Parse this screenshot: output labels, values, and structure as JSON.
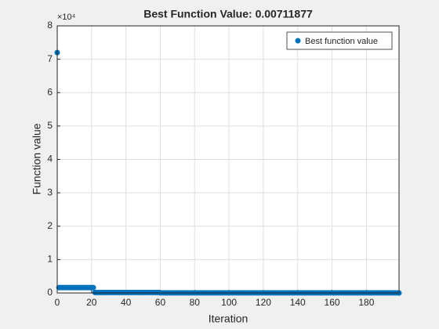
{
  "chart_data": {
    "type": "scatter",
    "title": "Best Function Value: 0.00711877",
    "x_label": "Iteration",
    "y_label": "Function value",
    "y_scale_label": "×10⁴",
    "xlim": [
      0,
      199
    ],
    "xticks": [
      0,
      20,
      40,
      60,
      80,
      100,
      120,
      140,
      160,
      180
    ],
    "ylim": [
      0,
      80000
    ],
    "yticks": [
      {
        "value": 0,
        "label": "0"
      },
      {
        "value": 10000,
        "label": "1"
      },
      {
        "value": 20000,
        "label": "2"
      },
      {
        "value": 30000,
        "label": "3"
      },
      {
        "value": 40000,
        "label": "4"
      },
      {
        "value": 50000,
        "label": "5"
      },
      {
        "value": 60000,
        "label": "6"
      },
      {
        "value": 70000,
        "label": "7"
      },
      {
        "value": 80000,
        "label": "8"
      }
    ],
    "grid": true,
    "legend": "top-right",
    "series": [
      {
        "name": "Best function value",
        "color": "#0072bd",
        "x": [
          0,
          1,
          2,
          3,
          4,
          5,
          6,
          7,
          8,
          9,
          10,
          11,
          12,
          13,
          14,
          15,
          16,
          17,
          18,
          19,
          20,
          21,
          22,
          23,
          24,
          25,
          26,
          27,
          28,
          29,
          30,
          31,
          32,
          33,
          34,
          35,
          36,
          37,
          38,
          39,
          40,
          41,
          42,
          43,
          44,
          45,
          46,
          47,
          48,
          49,
          50,
          51,
          52,
          53,
          54,
          55,
          56,
          57,
          58,
          59,
          60,
          61,
          62,
          63,
          64,
          65,
          66,
          67,
          68,
          69,
          70,
          71,
          72,
          73,
          74,
          75,
          76,
          77,
          78,
          79,
          80,
          81,
          82,
          83,
          84,
          85,
          86,
          87,
          88,
          89,
          90,
          91,
          92,
          93,
          94,
          95,
          96,
          97,
          98,
          99,
          100,
          101,
          102,
          103,
          104,
          105,
          106,
          107,
          108,
          109,
          110,
          111,
          112,
          113,
          114,
          115,
          116,
          117,
          118,
          119,
          120,
          121,
          122,
          123,
          124,
          125,
          126,
          127,
          128,
          129,
          130,
          131,
          132,
          133,
          134,
          135,
          136,
          137,
          138,
          139,
          140,
          141,
          142,
          143,
          144,
          145,
          146,
          147,
          148,
          149,
          150,
          151,
          152,
          153,
          154,
          155,
          156,
          157,
          158,
          159,
          160,
          161,
          162,
          163,
          164,
          165,
          166,
          167,
          168,
          169,
          170,
          171,
          172,
          173,
          174,
          175,
          176,
          177,
          178,
          179,
          180,
          181,
          182,
          183,
          184,
          185,
          186,
          187,
          188,
          189,
          190,
          191,
          192,
          193,
          194,
          195,
          196,
          197,
          198,
          199
        ],
        "values": [
          72000,
          1600,
          1600,
          1600,
          1600,
          1600,
          1600,
          1600,
          1600,
          1600,
          1600,
          1600,
          1600,
          1600,
          1600,
          1600,
          1600,
          1600,
          1600,
          1600,
          1600,
          1600,
          150,
          150,
          150,
          150,
          150,
          150,
          150,
          150,
          150,
          150,
          150,
          150,
          150,
          150,
          150,
          150,
          150,
          150,
          150,
          150,
          150,
          150,
          150,
          150,
          150,
          150,
          150,
          150,
          150,
          150,
          150,
          150,
          150,
          150,
          150,
          150,
          150,
          150,
          40,
          40,
          40,
          40,
          40,
          40,
          40,
          40,
          40,
          40,
          40,
          40,
          40,
          40,
          40,
          40,
          40,
          40,
          40,
          40,
          40,
          40,
          40,
          40,
          40,
          40,
          40,
          40,
          40,
          40,
          40,
          40,
          40,
          40,
          40,
          40,
          40,
          40,
          40,
          40,
          40,
          40,
          40,
          40,
          40,
          40,
          40,
          40,
          40,
          40,
          40,
          40,
          40,
          40,
          40,
          40,
          40,
          40,
          40,
          40,
          40,
          40,
          40,
          40,
          40,
          40,
          40,
          40,
          40,
          40,
          40,
          40,
          40,
          40,
          40,
          40,
          40,
          40,
          40,
          40,
          40,
          40,
          40,
          40,
          40,
          40,
          40,
          40,
          40,
          40,
          40,
          40,
          40,
          40,
          40,
          40,
          40,
          40,
          40,
          40,
          40,
          40,
          40,
          40,
          40,
          40,
          40,
          40,
          40,
          40,
          40,
          40,
          40,
          40,
          40,
          40,
          40,
          40,
          40,
          40,
          40,
          40,
          40,
          40,
          40,
          40,
          40,
          40,
          40,
          40,
          40,
          40,
          40,
          40,
          40,
          40,
          40,
          40,
          40,
          0.00711877
        ]
      }
    ]
  }
}
